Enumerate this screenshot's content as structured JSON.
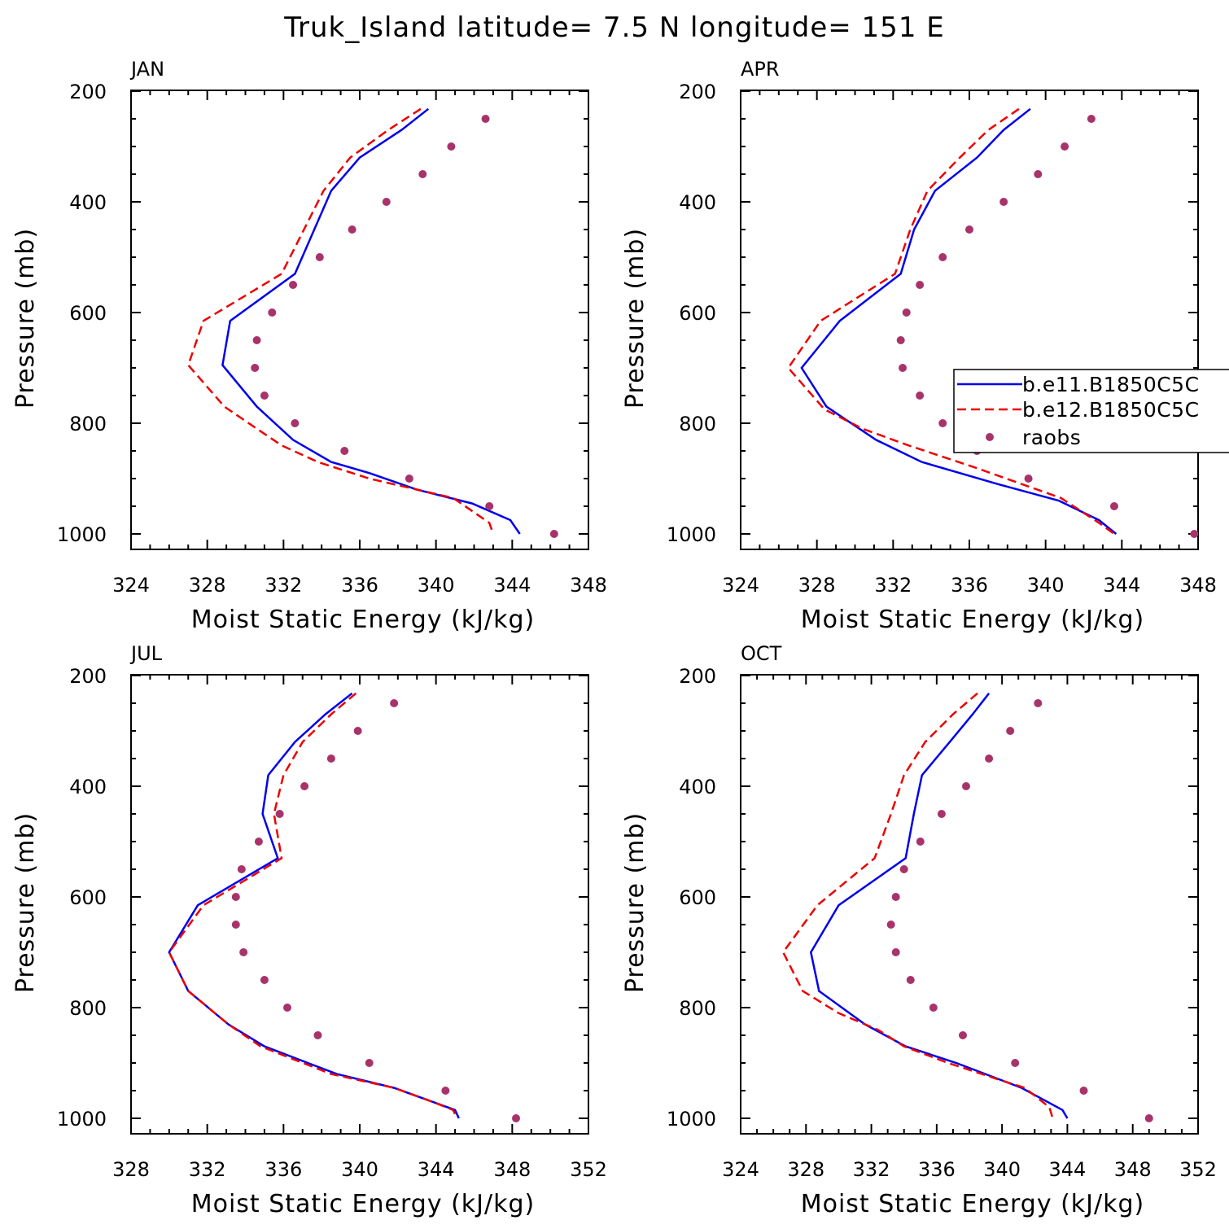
{
  "title": "Truk_Island  latitude= 7.5 N longitude= 151 E",
  "colors": {
    "model1": "#0000ee",
    "model2": "#ee0000",
    "obs": "#a8336a",
    "axis": "#000000"
  },
  "legend": {
    "entries": [
      {
        "label": "b.e11.B1850C5C",
        "style": "solid",
        "color": "#0000ee"
      },
      {
        "label": "b.e12.B1850C5C",
        "style": "dashed",
        "color": "#ee0000"
      },
      {
        "label": "raobs",
        "style": "marker",
        "color": "#a8336a"
      }
    ]
  },
  "chart_data": [
    {
      "type": "line",
      "panel": "JAN",
      "xlabel": "Moist Static Energy (kJ/kg)",
      "ylabel": "Pressure (mb)",
      "xlim": [
        324,
        348
      ],
      "xticks": [
        324,
        328,
        332,
        336,
        340,
        344,
        348
      ],
      "ylim": [
        200,
        1000
      ],
      "yticks": [
        200,
        400,
        600,
        800,
        1000
      ],
      "series": [
        {
          "name": "b.e11.B1850C5C",
          "x": [
            339.6,
            338.2,
            336.0,
            334.5,
            332.6,
            329.2,
            328.8,
            330.6,
            332.5,
            334.5,
            336.5,
            339.0,
            341.9,
            343.9,
            344.4
          ],
          "y": [
            232,
            270,
            320,
            380,
            530,
            615,
            695,
            770,
            830,
            870,
            890,
            920,
            945,
            975,
            1000
          ]
        },
        {
          "name": "b.e12.B1850C5C",
          "x": [
            339.2,
            337.5,
            335.5,
            334.1,
            331.9,
            327.8,
            327.0,
            328.9,
            330.6,
            331.9,
            333.8,
            336.5,
            340.9,
            342.8,
            343.0
          ],
          "y": [
            232,
            270,
            320,
            380,
            530,
            615,
            695,
            770,
            810,
            840,
            870,
            900,
            935,
            980,
            1000
          ]
        },
        {
          "name": "raobs",
          "x": [
            342.6,
            340.8,
            339.3,
            337.4,
            335.6,
            333.9,
            332.5,
            331.4,
            330.6,
            330.5,
            331.0,
            332.6,
            335.2,
            338.6,
            342.8,
            346.2
          ],
          "y": [
            250,
            300,
            350,
            400,
            450,
            500,
            550,
            600,
            650,
            700,
            750,
            800,
            850,
            900,
            950,
            1000
          ]
        }
      ]
    },
    {
      "type": "line",
      "panel": "APR",
      "xlabel": "Moist Static Energy (kJ/kg)",
      "ylabel": "Pressure (mb)",
      "xlim": [
        324,
        348
      ],
      "xticks": [
        324,
        328,
        332,
        336,
        340,
        344,
        348
      ],
      "ylim": [
        200,
        1000
      ],
      "yticks": [
        200,
        400,
        600,
        800,
        1000
      ],
      "series": [
        {
          "name": "b.e11.B1850C5C",
          "x": [
            339.2,
            337.8,
            336.4,
            334.2,
            333.1,
            332.4,
            329.2,
            327.2,
            328.5,
            331.1,
            333.5,
            337.5,
            340.7,
            342.8,
            343.7
          ],
          "y": [
            232,
            270,
            320,
            380,
            450,
            530,
            615,
            700,
            770,
            830,
            870,
            910,
            940,
            975,
            1000
          ]
        },
        {
          "name": "b.e12.B1850C5C",
          "x": [
            338.6,
            337.0,
            335.5,
            333.8,
            332.9,
            332.1,
            328.2,
            326.5,
            328.4,
            330.4,
            332.8,
            336.3,
            340.8,
            342.8,
            343.6
          ],
          "y": [
            232,
            270,
            320,
            380,
            450,
            530,
            615,
            700,
            775,
            810,
            840,
            880,
            935,
            980,
            1000
          ]
        },
        {
          "name": "raobs",
          "x": [
            342.4,
            341.0,
            339.6,
            337.8,
            336.0,
            334.6,
            333.4,
            332.7,
            332.4,
            332.5,
            333.4,
            334.6,
            336.4,
            339.1,
            343.6,
            347.8
          ],
          "y": [
            250,
            300,
            350,
            400,
            450,
            500,
            550,
            600,
            650,
            700,
            750,
            800,
            850,
            900,
            950,
            1000
          ]
        }
      ]
    },
    {
      "type": "line",
      "panel": "JUL",
      "xlabel": "Moist Static Energy (kJ/kg)",
      "ylabel": "Pressure (mb)",
      "xlim": [
        328,
        352
      ],
      "xticks": [
        328,
        332,
        336,
        340,
        344,
        348,
        352
      ],
      "ylim": [
        200,
        1000
      ],
      "yticks": [
        200,
        400,
        600,
        800,
        1000
      ],
      "series": [
        {
          "name": "b.e11.B1850C5C",
          "x": [
            339.6,
            338.2,
            336.6,
            335.2,
            334.9,
            335.7,
            331.5,
            330.0,
            331.0,
            333.1,
            335.0,
            338.8,
            341.8,
            343.8,
            345.0,
            345.2
          ],
          "y": [
            232,
            270,
            320,
            380,
            450,
            530,
            615,
            700,
            770,
            830,
            870,
            920,
            945,
            970,
            985,
            1000
          ]
        },
        {
          "name": "b.e12.B1850C5C",
          "x": [
            339.8,
            338.5,
            337.0,
            336.0,
            335.5,
            335.9,
            331.8,
            330.0,
            331.0,
            333.1,
            334.8,
            338.5,
            341.8,
            343.8,
            344.9,
            345.1
          ],
          "y": [
            232,
            270,
            320,
            380,
            450,
            530,
            615,
            700,
            770,
            830,
            870,
            920,
            945,
            970,
            985,
            1000
          ]
        },
        {
          "name": "raobs",
          "x": [
            341.8,
            339.9,
            338.5,
            337.1,
            335.8,
            334.7,
            333.8,
            333.5,
            333.5,
            333.9,
            335.0,
            336.2,
            337.8,
            340.5,
            344.5,
            348.2
          ],
          "y": [
            250,
            300,
            350,
            400,
            450,
            500,
            550,
            600,
            650,
            700,
            750,
            800,
            850,
            900,
            950,
            1000
          ]
        }
      ]
    },
    {
      "type": "line",
      "panel": "OCT",
      "xlabel": "Moist Static Energy (kJ/kg)",
      "ylabel": "Pressure (mb)",
      "xlim": [
        324,
        352
      ],
      "xticks": [
        324,
        328,
        332,
        336,
        340,
        344,
        348,
        352
      ],
      "ylim": [
        200,
        1000
      ],
      "yticks": [
        200,
        400,
        600,
        800,
        1000
      ],
      "series": [
        {
          "name": "b.e11.B1850C5C",
          "x": [
            339.2,
            338.2,
            336.8,
            335.1,
            334.6,
            334.1,
            330.0,
            328.3,
            328.8,
            331.6,
            334.1,
            337.2,
            341.2,
            343.7,
            344.0
          ],
          "y": [
            232,
            270,
            320,
            380,
            450,
            530,
            615,
            700,
            770,
            830,
            870,
            900,
            945,
            985,
            1000
          ]
        },
        {
          "name": "b.e12.B1850C5C",
          "x": [
            338.5,
            337.0,
            335.3,
            334.0,
            333.2,
            332.2,
            328.7,
            326.6,
            327.8,
            330.0,
            332.4,
            334.0,
            336.7,
            339.8,
            341.4,
            342.9,
            343.1
          ],
          "y": [
            232,
            270,
            320,
            380,
            450,
            530,
            615,
            700,
            770,
            810,
            840,
            870,
            900,
            930,
            945,
            980,
            1000
          ]
        },
        {
          "name": "raobs",
          "x": [
            342.2,
            340.5,
            339.2,
            337.8,
            336.3,
            335.0,
            334.0,
            333.5,
            333.2,
            333.5,
            334.4,
            335.8,
            337.6,
            340.8,
            345.0,
            349.0
          ],
          "y": [
            250,
            300,
            350,
            400,
            450,
            500,
            550,
            600,
            650,
            700,
            750,
            800,
            850,
            900,
            950,
            1000
          ]
        }
      ]
    }
  ]
}
